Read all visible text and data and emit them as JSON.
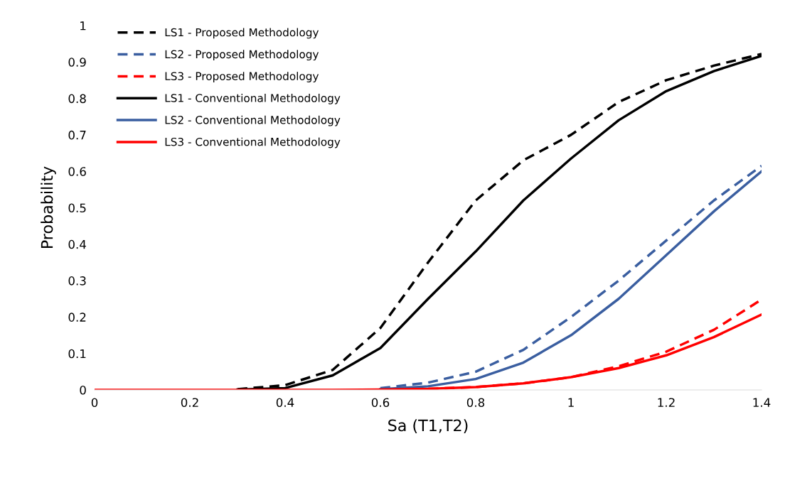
{
  "chart_data": {
    "type": "line",
    "xlabel": "Sa (T1,T2)",
    "ylabel": "Probability",
    "x": [
      0,
      0.1,
      0.2,
      0.3,
      0.4,
      0.5,
      0.6,
      0.7,
      0.8,
      0.9,
      1.0,
      1.1,
      1.2,
      1.3,
      1.4
    ],
    "xlim": [
      0,
      1.4
    ],
    "xticks": [
      0,
      0.2,
      0.4,
      0.6,
      0.8,
      1,
      1.2,
      1.4
    ],
    "ylim": [
      0,
      1
    ],
    "yticks": [
      0,
      0.1,
      0.2,
      0.3,
      0.4,
      0.5,
      0.6,
      0.7,
      0.8,
      0.9,
      1
    ],
    "grid": false,
    "legend": "top left",
    "marker": "none",
    "series": [
      {
        "name": "LS1 - Proposed Methodology",
        "color": "#000000",
        "line_style": "dashed",
        "values": [
          null,
          null,
          null,
          0.002,
          0.013,
          0.055,
          0.17,
          0.35,
          0.52,
          0.63,
          0.7,
          0.79,
          0.85,
          0.89,
          0.922
        ]
      },
      {
        "name": "LS2 - Proposed Methodology",
        "color": "#3a5ea0",
        "line_style": "dashed",
        "values": [
          null,
          null,
          null,
          null,
          null,
          null,
          0.005,
          0.02,
          0.05,
          0.11,
          0.2,
          0.3,
          0.41,
          0.52,
          0.615
        ]
      },
      {
        "name": "LS3 - Proposed Methodology",
        "color": "#ff0000",
        "line_style": "dashed",
        "values": [
          null,
          null,
          null,
          null,
          null,
          null,
          0.001,
          0.003,
          0.008,
          0.018,
          0.035,
          0.065,
          0.105,
          0.165,
          0.248
        ]
      },
      {
        "name": "LS1 - Conventional Methodology",
        "color": "#000000",
        "line_style": "solid",
        "values": [
          null,
          null,
          null,
          0.001,
          0.005,
          0.04,
          0.115,
          0.25,
          0.38,
          0.52,
          0.635,
          0.74,
          0.82,
          0.875,
          0.917
        ]
      },
      {
        "name": "LS2 - Conventional Methodology",
        "color": "#3a5ea0",
        "line_style": "solid",
        "values": [
          null,
          null,
          null,
          null,
          null,
          null,
          0.002,
          0.01,
          0.03,
          0.075,
          0.15,
          0.25,
          0.37,
          0.49,
          0.6
        ]
      },
      {
        "name": "LS3 - Conventional Methodology",
        "color": "#ff0000",
        "line_style": "solid",
        "values": [
          0,
          0,
          0,
          0,
          0,
          0,
          0.001,
          0.003,
          0.008,
          0.018,
          0.035,
          0.06,
          0.095,
          0.145,
          0.207
        ]
      }
    ]
  }
}
